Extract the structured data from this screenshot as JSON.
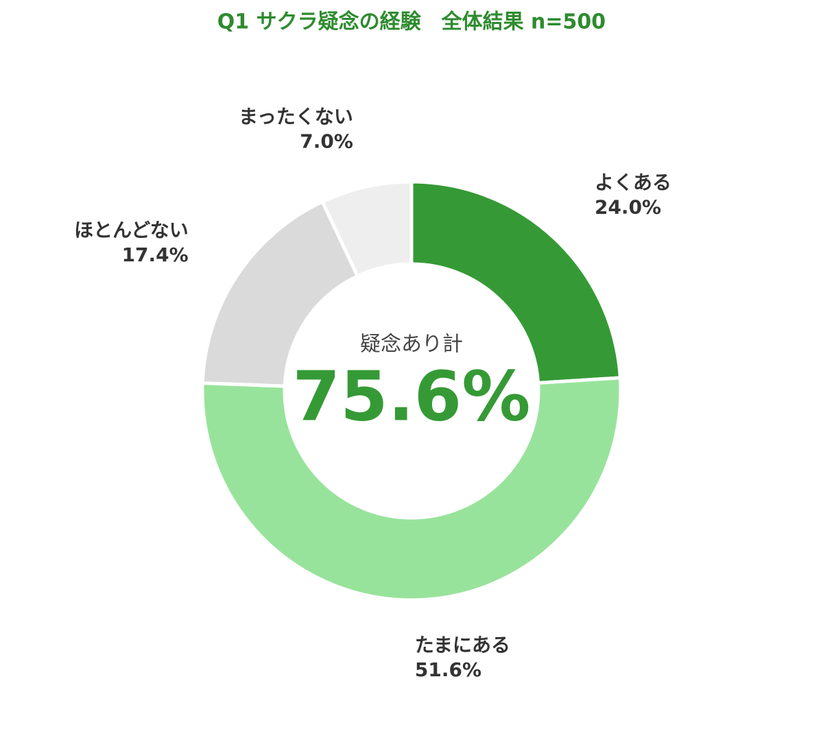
{
  "chart_data": {
    "type": "pie",
    "title": "Q1 サクラ疑念の経験　全体結果 n=500",
    "categories": [
      "よくある",
      "たまにある",
      "ほとんどない",
      "まったくない"
    ],
    "values": [
      24.0,
      51.6,
      17.4,
      7.0
    ],
    "value_labels": [
      "24.0%",
      "51.6%",
      "17.4%",
      "7.0%"
    ],
    "colors": [
      "#359a35",
      "#98e39c",
      "#dadada",
      "#eeeeee"
    ],
    "center_text": "疑念あり計",
    "center_value": 75.6,
    "center_value_label": "75.6%"
  }
}
